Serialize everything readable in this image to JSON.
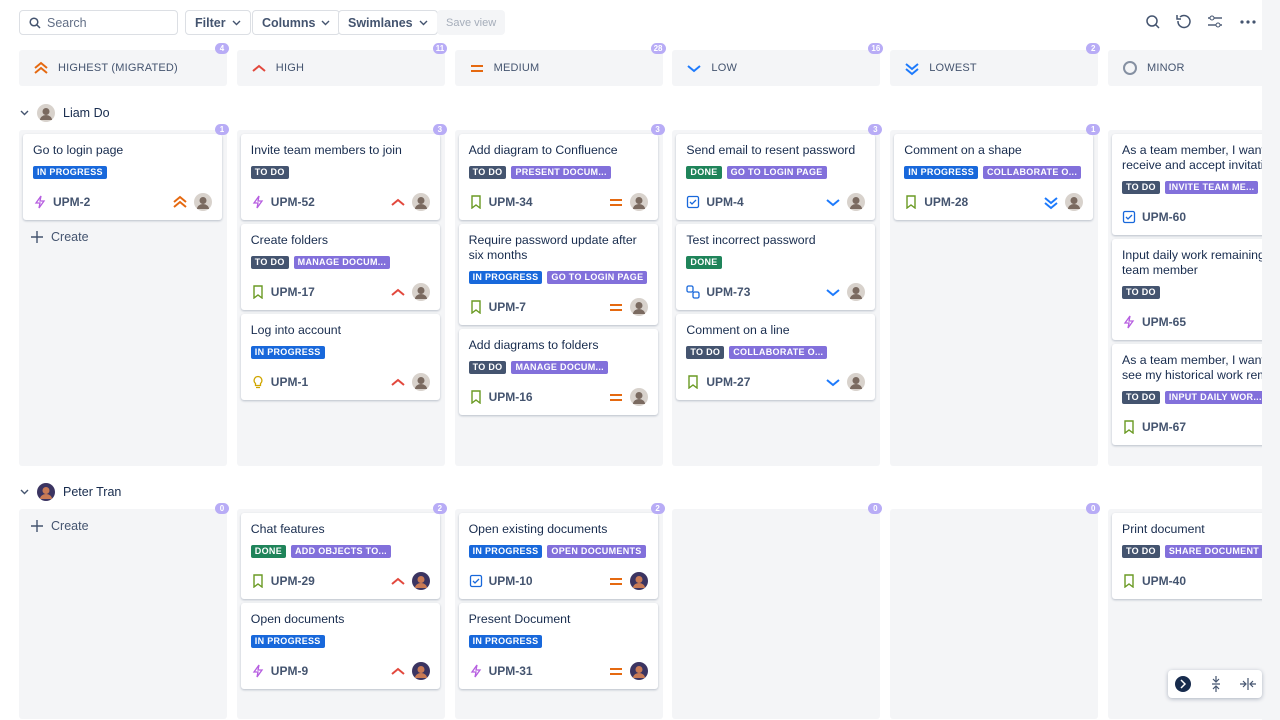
{
  "toolbar": {
    "search": "Search",
    "filter": "Filter",
    "columns": "Columns",
    "swimlanes": "Swimlanes",
    "save_view": "Save view"
  },
  "columns": [
    {
      "title": "HIGHEST (MIGRATED)",
      "count": 4
    },
    {
      "title": "HIGH",
      "count": 11
    },
    {
      "title": "MEDIUM",
      "count": 28
    },
    {
      "title": "LOW",
      "count": 16
    },
    {
      "title": "LOWEST",
      "count": 2
    },
    {
      "title": "MINOR"
    }
  ],
  "swimlanes": [
    {
      "name": "Liam Do",
      "cells": [
        {
          "count": 1,
          "cards": [
            {
              "title": "Go to login page",
              "status": "IN PROGRESS",
              "status_color": "#1868db",
              "key": "UPM-2",
              "icon": "subtask"
            }
          ],
          "create": "Create"
        },
        {
          "count": 3,
          "cards": [
            {
              "title": "Invite team members to join",
              "status": "TO DO",
              "status_color": "#44546f",
              "key": "UPM-52",
              "icon": "subtask"
            },
            {
              "title": "Create folders",
              "status": "TO DO",
              "status_color": "#44546f",
              "epic": "MANAGE DOCUM...",
              "key": "UPM-17",
              "icon": "story"
            },
            {
              "title": "Log into account",
              "status": "IN PROGRESS",
              "status_color": "#1868db",
              "key": "UPM-1",
              "icon": "idea"
            }
          ]
        },
        {
          "count": 3,
          "cards": [
            {
              "title": "Add diagram to Confluence",
              "status": "TO DO",
              "status_color": "#44546f",
              "epic": "PRESENT DOCUM...",
              "key": "UPM-34",
              "icon": "story"
            },
            {
              "title": "Require password update after six months",
              "status": "IN PROGRESS",
              "status_color": "#1868db",
              "epic": "GO TO LOGIN PAGE",
              "key": "UPM-7",
              "icon": "story"
            },
            {
              "title": "Add diagrams to folders",
              "status": "TO DO",
              "status_color": "#44546f",
              "epic": "MANAGE DOCUM...",
              "key": "UPM-16",
              "icon": "story"
            }
          ]
        },
        {
          "count": 3,
          "cards": [
            {
              "title": "Send email to resent password",
              "status": "DONE",
              "status_color": "#1f845a",
              "epic": "GO TO LOGIN PAGE",
              "key": "UPM-4",
              "icon": "task"
            },
            {
              "title": "Test incorrect password",
              "status": "DONE",
              "status_color": "#1f845a",
              "key": "UPM-73",
              "icon": "link"
            },
            {
              "title": "Comment on a line",
              "status": "TO DO",
              "status_color": "#44546f",
              "epic": "COLLABORATE O...",
              "key": "UPM-27",
              "icon": "story"
            }
          ]
        },
        {
          "count": 1,
          "cards": [
            {
              "title": "Comment on a shape",
              "status": "IN PROGRESS",
              "status_color": "#1868db",
              "epic": "COLLABORATE O...",
              "key": "UPM-28",
              "icon": "story"
            }
          ]
        },
        {
          "cards": [
            {
              "title": "As a team member, I want to receive and accept invitations",
              "status": "TO DO",
              "status_color": "#44546f",
              "epic": "INVITE TEAM ME...",
              "key": "UPM-60",
              "icon": "task"
            },
            {
              "title": "Input daily work remaining to team member",
              "status": "TO DO",
              "status_color": "#44546f",
              "key": "UPM-65",
              "icon": "subtask"
            },
            {
              "title": "As a team member, I want to see my historical work remaining",
              "status": "TO DO",
              "status_color": "#44546f",
              "epic": "INPUT DAILY WOR...",
              "key": "UPM-67",
              "icon": "story"
            }
          ]
        }
      ]
    },
    {
      "name": "Peter Tran",
      "cells": [
        {
          "count": 0,
          "cards": [],
          "create": "Create"
        },
        {
          "count": 2,
          "cards": [
            {
              "title": "Chat features",
              "status": "DONE",
              "status_color": "#1f845a",
              "epic": "ADD OBJECTS TO...",
              "key": "UPM-29",
              "icon": "story"
            },
            {
              "title": "Open documents",
              "status": "IN PROGRESS",
              "status_color": "#1868db",
              "key": "UPM-9",
              "icon": "subtask"
            }
          ]
        },
        {
          "count": 2,
          "cards": [
            {
              "title": "Open existing documents",
              "status": "IN PROGRESS",
              "status_color": "#1868db",
              "epic": "OPEN DOCUMENTS",
              "key": "UPM-10",
              "icon": "task"
            },
            {
              "title": "Present Document",
              "status": "IN PROGRESS",
              "status_color": "#1868db",
              "key": "UPM-31",
              "icon": "subtask"
            }
          ]
        },
        {
          "count": 0,
          "cards": []
        },
        {
          "count": 0,
          "cards": []
        },
        {
          "cards": [
            {
              "title": "Print document",
              "status": "TO DO",
              "status_color": "#44546f",
              "epic": "SHARE DOCUMENT",
              "key": "UPM-40",
              "icon": "story"
            }
          ]
        }
      ]
    }
  ]
}
